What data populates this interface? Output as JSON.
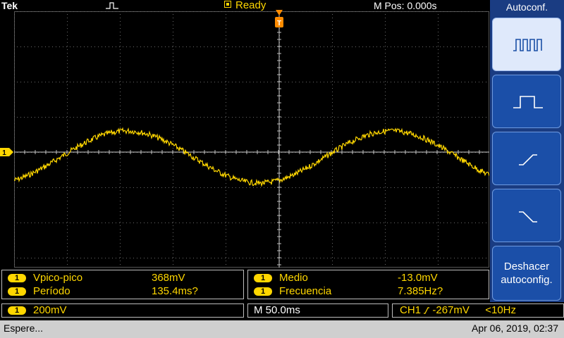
{
  "top": {
    "brand": "Tek",
    "status": "Ready",
    "mpos": "M Pos: 0.000s"
  },
  "menu": {
    "title": "Autoconf.",
    "buttons": [
      {
        "icon": "multi-cycle-square-icon"
      },
      {
        "icon": "single-pulse-icon"
      },
      {
        "icon": "rising-edge-icon"
      },
      {
        "icon": "falling-edge-icon"
      }
    ],
    "undo_line1": "Deshacer",
    "undo_line2": "autoconfig."
  },
  "measurements": {
    "left": [
      {
        "channel": "1",
        "label": "Vpico-pico",
        "value": "368mV"
      },
      {
        "channel": "1",
        "label": "Período",
        "value": "135.4ms?"
      }
    ],
    "right": [
      {
        "channel": "1",
        "label": "Medio",
        "value": "-13.0mV"
      },
      {
        "channel": "1",
        "label": "Frecuencia",
        "value": "7.385Hz?"
      }
    ]
  },
  "scale": {
    "channel": "1",
    "volts_div": "200mV",
    "time_div": "M 50.0ms",
    "trigger_source": "CH1",
    "trigger_level": "-267mV",
    "trigger_freq": "<10Hz"
  },
  "statusbar": {
    "message": "Espere...",
    "datetime": "Apr 06, 2019, 02:37"
  },
  "markers": {
    "ch1_marker": "1"
  },
  "colors": {
    "trace": "#ffd700",
    "trigger": "#ff8c00",
    "menu": "#1a3c82"
  }
}
